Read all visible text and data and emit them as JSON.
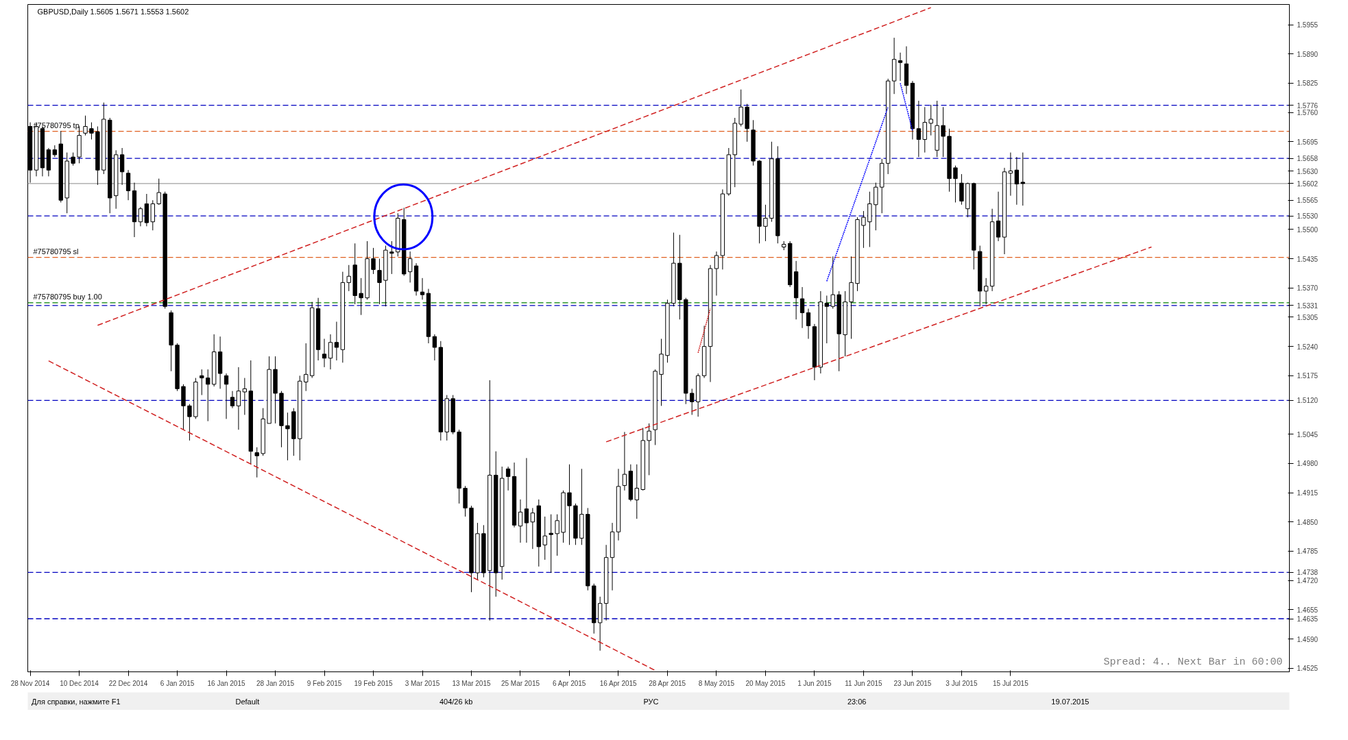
{
  "chart_data": {
    "type": "candlestick",
    "title": "GBPUSD,Daily 1.5605 1.5671 1.5553 1.5602",
    "categories": [
      "28 Nov 2014",
      null,
      null,
      null,
      null,
      null,
      null,
      null,
      "10 Dec 2014",
      null,
      null,
      null,
      null,
      null,
      null,
      null,
      "22 Dec 2014",
      null,
      null,
      null,
      null,
      null,
      null,
      null,
      "6 Jan 2015",
      null,
      null,
      null,
      null,
      null,
      null,
      null,
      "16 Jan 2015",
      null,
      null,
      null,
      null,
      null,
      null,
      null,
      "28 Jan 2015",
      null,
      null,
      null,
      null,
      null,
      null,
      null,
      "9 Feb 2015",
      null,
      null,
      null,
      null,
      null,
      null,
      null,
      "19 Feb 2015",
      null,
      null,
      null,
      null,
      null,
      null,
      null,
      "3 Mar 2015",
      null,
      null,
      null,
      null,
      null,
      null,
      null,
      "13 Mar 2015",
      null,
      null,
      null,
      null,
      null,
      null,
      null,
      "25 Mar 2015",
      null,
      null,
      null,
      null,
      null,
      null,
      null,
      "6 Apr 2015",
      null,
      null,
      null,
      null,
      null,
      null,
      null,
      "16 Apr 2015",
      null,
      null,
      null,
      null,
      null,
      null,
      null,
      "28 Apr 2015",
      null,
      null,
      null,
      null,
      null,
      null,
      null,
      "8 May 2015",
      null,
      null,
      null,
      null,
      null,
      null,
      null,
      "20 May 2015",
      null,
      null,
      null,
      null,
      null,
      null,
      null,
      "1 Jun 2015",
      null,
      null,
      null,
      null,
      null,
      null,
      null,
      "11 Jun 2015",
      null,
      null,
      null,
      null,
      null,
      null,
      null,
      "23 Jun 2015",
      null,
      null,
      null,
      null,
      null,
      null,
      null,
      "3 Jul 2015",
      null,
      null,
      null,
      null,
      null,
      null,
      null,
      "15 Jul 2015",
      null,
      null,
      null,
      null,
      null,
      null,
      null,
      null,
      null,
      null,
      null,
      null,
      null,
      null,
      null,
      null,
      null,
      null,
      null,
      null,
      null,
      null,
      null,
      null,
      null,
      null,
      null,
      null,
      null,
      null,
      null,
      null,
      null,
      null,
      null,
      null,
      null,
      null,
      null,
      null,
      null,
      null,
      null,
      null,
      null
    ],
    "ohlc": [
      [
        1.5729,
        1.5738,
        1.5604,
        1.5632
      ],
      [
        1.5632,
        1.5738,
        1.5618,
        1.5729
      ],
      [
        1.5724,
        1.5729,
        1.5618,
        1.5637
      ],
      [
        1.5677,
        1.5681,
        1.5618,
        1.5632
      ],
      [
        1.5677,
        1.5687,
        1.5661,
        1.5666
      ],
      [
        1.569,
        1.5719,
        1.556,
        1.5565
      ],
      [
        1.557,
        1.5671,
        1.5536,
        1.5652
      ],
      [
        1.5661,
        1.5671,
        1.5642,
        1.5647
      ],
      [
        1.5661,
        1.5729,
        1.5647,
        1.5709
      ],
      [
        1.5714,
        1.5753,
        1.5709,
        1.5729
      ],
      [
        1.5724,
        1.5738,
        1.57,
        1.5714
      ],
      [
        1.5717,
        1.5729,
        1.5599,
        1.5632
      ],
      [
        1.5632,
        1.5782,
        1.5623,
        1.5745
      ],
      [
        1.5743,
        1.5748,
        1.5536,
        1.557
      ],
      [
        1.5575,
        1.5676,
        1.5546,
        1.5666
      ],
      [
        1.5666,
        1.5681,
        1.5599,
        1.5628
      ],
      [
        1.5625,
        1.5632,
        1.5565,
        1.5586
      ],
      [
        1.5586,
        1.5604,
        1.5483,
        1.5517
      ],
      [
        1.5517,
        1.555,
        1.5507,
        1.5546
      ],
      [
        1.5557,
        1.5579,
        1.5507,
        1.5515
      ],
      [
        1.5517,
        1.5565,
        1.5498,
        1.5557
      ],
      [
        1.5557,
        1.5613,
        1.5555,
        1.5582
      ],
      [
        1.5579,
        1.5584,
        1.5324,
        1.5329
      ],
      [
        1.5315,
        1.532,
        1.5185,
        1.5243
      ],
      [
        1.5243,
        1.5247,
        1.5141,
        1.5146
      ],
      [
        1.5151,
        1.5156,
        1.5055,
        1.5108
      ],
      [
        1.5108,
        1.5112,
        1.5031,
        1.5084
      ],
      [
        1.5084,
        1.517,
        1.5079,
        1.5161
      ],
      [
        1.5175,
        1.5189,
        1.5132,
        1.517
      ],
      [
        1.517,
        1.5189,
        1.5074,
        1.5156
      ],
      [
        1.5156,
        1.5267,
        1.5151,
        1.5228
      ],
      [
        1.5228,
        1.5262,
        1.5146,
        1.518
      ],
      [
        1.5175,
        1.518,
        1.5079,
        1.5156
      ],
      [
        1.5127,
        1.5141,
        1.5103,
        1.5108
      ],
      [
        1.5108,
        1.5194,
        1.5055,
        1.5141
      ],
      [
        1.5139,
        1.517,
        1.5088,
        1.5146
      ],
      [
        1.5141,
        1.5209,
        1.4978,
        1.5007
      ],
      [
        1.5004,
        1.5016,
        1.4949,
        1.4997
      ],
      [
        1.5002,
        1.5103,
        1.4997,
        1.5079
      ],
      [
        1.5069,
        1.5218,
        1.5069,
        1.5189
      ],
      [
        1.5189,
        1.5218,
        1.5069,
        1.5136
      ],
      [
        1.5136,
        1.5141,
        1.5016,
        1.5064
      ],
      [
        1.5064,
        1.5093,
        1.4987,
        1.5057
      ],
      [
        1.5095,
        1.5103,
        1.4997,
        1.5035
      ],
      [
        1.5035,
        1.5175,
        1.4987,
        1.5163
      ],
      [
        1.5161,
        1.5247,
        1.5141,
        1.5178
      ],
      [
        1.5175,
        1.5339,
        1.517,
        1.5326
      ],
      [
        1.5324,
        1.5348,
        1.5209,
        1.5233
      ],
      [
        1.5223,
        1.5257,
        1.5194,
        1.5214
      ],
      [
        1.5214,
        1.5267,
        1.5189,
        1.5249
      ],
      [
        1.5249,
        1.5295,
        1.5209,
        1.5238
      ],
      [
        1.5233,
        1.5406,
        1.5204,
        1.5382
      ],
      [
        1.5382,
        1.5421,
        1.5363,
        1.5396
      ],
      [
        1.5421,
        1.5469,
        1.5334,
        1.5353
      ],
      [
        1.5358,
        1.5392,
        1.531,
        1.5348
      ],
      [
        1.5348,
        1.5474,
        1.5344,
        1.5435
      ],
      [
        1.5435,
        1.5459,
        1.5401,
        1.5411
      ],
      [
        1.5409,
        1.5435,
        1.5334,
        1.5382
      ],
      [
        1.5387,
        1.5464,
        1.5329,
        1.5454
      ],
      [
        1.545,
        1.5474,
        1.5401,
        1.5447
      ],
      [
        1.545,
        1.5536,
        1.544,
        1.5525
      ],
      [
        1.5522,
        1.5548,
        1.5397,
        1.5401
      ],
      [
        1.5406,
        1.5451,
        1.5382,
        1.5435
      ],
      [
        1.5419,
        1.5425,
        1.5353,
        1.5363
      ],
      [
        1.5361,
        1.5392,
        1.5344,
        1.5355
      ],
      [
        1.5358,
        1.5368,
        1.5247,
        1.5262
      ],
      [
        1.5262,
        1.5267,
        1.5209,
        1.5238
      ],
      [
        1.5238,
        1.5252,
        1.5031,
        1.505
      ],
      [
        1.505,
        1.5132,
        1.5031,
        1.5124
      ],
      [
        1.5124,
        1.5132,
        1.5045,
        1.505
      ],
      [
        1.505,
        1.5055,
        1.4891,
        1.4925
      ],
      [
        1.4925,
        1.493,
        1.4862,
        1.4881
      ],
      [
        1.4881,
        1.4886,
        1.4694,
        1.4737
      ],
      [
        1.4737,
        1.4848,
        1.4722,
        1.4824
      ],
      [
        1.4824,
        1.4843,
        1.4727,
        1.4737
      ],
      [
        1.4742,
        1.5165,
        1.4631,
        1.4954
      ],
      [
        1.4954,
        1.5007,
        1.4684,
        1.4737
      ],
      [
        1.4751,
        1.4973,
        1.4722,
        1.4947
      ],
      [
        1.4968,
        1.4973,
        1.492,
        1.4951
      ],
      [
        1.4951,
        1.4982,
        1.4838,
        1.4843
      ],
      [
        1.4841,
        1.49,
        1.4804,
        1.4872
      ],
      [
        1.4879,
        1.4992,
        1.4804,
        1.4848
      ],
      [
        1.485,
        1.4881,
        1.479,
        1.487
      ],
      [
        1.4886,
        1.49,
        1.4751,
        1.4795
      ],
      [
        1.4799,
        1.4862,
        1.4766,
        1.4819
      ],
      [
        1.4825,
        1.4867,
        1.4737,
        1.4822
      ],
      [
        1.4824,
        1.4867,
        1.4775,
        1.4853
      ],
      [
        1.4827,
        1.492,
        1.4804,
        1.4915
      ],
      [
        1.4915,
        1.4978,
        1.4799,
        1.4886
      ],
      [
        1.4886,
        1.4891,
        1.4799,
        1.4814
      ],
      [
        1.4814,
        1.4968,
        1.4799,
        1.4867
      ],
      [
        1.4867,
        1.4881,
        1.4698,
        1.4708
      ],
      [
        1.4708,
        1.4713,
        1.4602,
        1.4626
      ],
      [
        1.4626,
        1.4684,
        1.4564,
        1.4669
      ],
      [
        1.4669,
        1.4799,
        1.4631,
        1.4771
      ],
      [
        1.4771,
        1.4848,
        1.4698,
        1.4828
      ],
      [
        1.4828,
        1.4968,
        1.4809,
        1.4929
      ],
      [
        1.4931,
        1.505,
        1.492,
        1.4956
      ],
      [
        1.4963,
        1.4978,
        1.4896,
        1.49
      ],
      [
        1.4899,
        1.4978,
        1.4857,
        1.4925
      ],
      [
        1.4922,
        1.5059,
        1.492,
        1.5031
      ],
      [
        1.5031,
        1.5069,
        1.4954,
        1.5052
      ],
      [
        1.5055,
        1.5189,
        1.5021,
        1.5185
      ],
      [
        1.5178,
        1.5257,
        1.5108,
        1.5223
      ],
      [
        1.522,
        1.5344,
        1.5204,
        1.5336
      ],
      [
        1.5336,
        1.5493,
        1.5329,
        1.5425
      ],
      [
        1.5425,
        1.5488,
        1.53,
        1.5344
      ],
      [
        1.5344,
        1.5348,
        1.5112,
        1.5136
      ],
      [
        1.5136,
        1.5146,
        1.5088,
        1.5117
      ],
      [
        1.5117,
        1.518,
        1.5084,
        1.5175
      ],
      [
        1.5175,
        1.5286,
        1.517,
        1.524
      ],
      [
        1.524,
        1.5421,
        1.5161,
        1.5413
      ],
      [
        1.5413,
        1.5451,
        1.5353,
        1.5442
      ],
      [
        1.5442,
        1.5589,
        1.5411,
        1.5579
      ],
      [
        1.5579,
        1.5681,
        1.5575,
        1.5666
      ],
      [
        1.5666,
        1.5748,
        1.5594,
        1.5736
      ],
      [
        1.5734,
        1.5811,
        1.5729,
        1.5772
      ],
      [
        1.5772,
        1.5779,
        1.5695,
        1.5724
      ],
      [
        1.5721,
        1.5743,
        1.5642,
        1.5652
      ],
      [
        1.5652,
        1.5654,
        1.5469,
        1.5507
      ],
      [
        1.5507,
        1.5555,
        1.5474,
        1.5525
      ],
      [
        1.5525,
        1.5695,
        1.5517,
        1.5657
      ],
      [
        1.5657,
        1.5685,
        1.5469,
        1.5486
      ],
      [
        1.5461,
        1.5474,
        1.5454,
        1.5467
      ],
      [
        1.5469,
        1.5474,
        1.5372,
        1.5377
      ],
      [
        1.5406,
        1.543,
        1.53,
        1.5348
      ],
      [
        1.5346,
        1.5372,
        1.5281,
        1.5315
      ],
      [
        1.5315,
        1.5324,
        1.5257,
        1.5286
      ],
      [
        1.5284,
        1.529,
        1.5165,
        1.5194
      ],
      [
        1.5194,
        1.5363,
        1.518,
        1.5339
      ],
      [
        1.5336,
        1.5353,
        1.5247,
        1.5329
      ],
      [
        1.5329,
        1.544,
        1.5324,
        1.5355
      ],
      [
        1.5355,
        1.5363,
        1.5185,
        1.5268
      ],
      [
        1.5266,
        1.5363,
        1.5218,
        1.5339
      ],
      [
        1.5339,
        1.544,
        1.5257,
        1.5382
      ],
      [
        1.538,
        1.5527,
        1.5363,
        1.5522
      ],
      [
        1.5509,
        1.5541,
        1.5459,
        1.5527
      ],
      [
        1.5517,
        1.5584,
        1.5461,
        1.5557
      ],
      [
        1.5555,
        1.5604,
        1.5498,
        1.5594
      ],
      [
        1.5594,
        1.5657,
        1.5536,
        1.5647
      ],
      [
        1.5647,
        1.5835,
        1.5623,
        1.583
      ],
      [
        1.583,
        1.5926,
        1.5801,
        1.5878
      ],
      [
        1.5875,
        1.5893,
        1.583,
        1.5871
      ],
      [
        1.5868,
        1.5907,
        1.5801,
        1.582
      ],
      [
        1.5825,
        1.583,
        1.57,
        1.5724
      ],
      [
        1.5724,
        1.5786,
        1.5661,
        1.57
      ],
      [
        1.57,
        1.5772,
        1.5671,
        1.5738
      ],
      [
        1.5736,
        1.5777,
        1.5709,
        1.5745
      ],
      [
        1.5676,
        1.5786,
        1.5661,
        1.5731
      ],
      [
        1.5731,
        1.5772,
        1.5661,
        1.5707
      ],
      [
        1.5707,
        1.5724,
        1.5584,
        1.5613
      ],
      [
        1.5637,
        1.5642,
        1.556,
        1.5613
      ],
      [
        1.5603,
        1.5623,
        1.5555,
        1.5563
      ],
      [
        1.5546,
        1.5604,
        1.5527,
        1.5602
      ],
      [
        1.5602,
        1.5604,
        1.5411,
        1.5454
      ],
      [
        1.5451,
        1.5464,
        1.5329,
        1.5363
      ],
      [
        1.5363,
        1.5392,
        1.5334,
        1.5374
      ],
      [
        1.5374,
        1.5546,
        1.5363,
        1.5517
      ],
      [
        1.5519,
        1.5584,
        1.5474,
        1.5483
      ],
      [
        1.5483,
        1.5637,
        1.5445,
        1.5628
      ],
      [
        1.5625,
        1.5671,
        1.5575,
        1.563
      ],
      [
        1.5632,
        1.5661,
        1.5555,
        1.5601
      ],
      [
        1.5605,
        1.5671,
        1.5553,
        1.5602
      ],
      null,
      null,
      null,
      null,
      null,
      null,
      null,
      null,
      null,
      null,
      null,
      null,
      null,
      null,
      null,
      null,
      null,
      null,
      null,
      null,
      null,
      null,
      null,
      null,
      null,
      null,
      null,
      null,
      null,
      null,
      null,
      null,
      null,
      null,
      null,
      null,
      null,
      null,
      null,
      null,
      null,
      null,
      null
    ],
    "series": [
      {
        "type": "line",
        "color": "#d02020",
        "line_style": "dashed",
        "values": [
          null,
          null,
          null,
          null,
          null,
          null,
          null,
          null,
          null,
          null,
          null,
          1.5287,
          null,
          null,
          null,
          null,
          null,
          null,
          null,
          null,
          null,
          null,
          null,
          null,
          null,
          null,
          null,
          null,
          null,
          null,
          null,
          null,
          null,
          null,
          null,
          null,
          null,
          null,
          null,
          null,
          null,
          null,
          null,
          null,
          null,
          null,
          null,
          null,
          null,
          null,
          null,
          null,
          null,
          null,
          null,
          null,
          null,
          null,
          null,
          null,
          null,
          null,
          null,
          null,
          null,
          null,
          null,
          null,
          null,
          null,
          null,
          null,
          null,
          null,
          null,
          null,
          null,
          null,
          null,
          null,
          null,
          null,
          null,
          null,
          null,
          null,
          null,
          null,
          null,
          null,
          null,
          null,
          null,
          null,
          null,
          null,
          null,
          null,
          null,
          null,
          null,
          null,
          null,
          null,
          null,
          null,
          null,
          null,
          null,
          null,
          null,
          null,
          null,
          null,
          null,
          null,
          null,
          null,
          null,
          null,
          null,
          null,
          null,
          null,
          null,
          null,
          null,
          null,
          null,
          null,
          null,
          null,
          null,
          null,
          null,
          null,
          null,
          null,
          null,
          null,
          null,
          null,
          null,
          null,
          null,
          null,
          null,
          1.5993,
          null,
          null,
          null,
          null,
          null,
          null,
          null,
          null,
          null,
          null,
          null,
          null,
          null,
          null,
          null,
          null,
          null,
          null,
          null,
          null,
          null,
          null,
          null,
          null,
          null,
          null,
          null,
          null,
          null,
          null,
          null,
          null,
          null,
          null,
          null,
          null,
          null,
          null,
          null,
          null,
          null,
          null,
          null,
          null,
          null,
          null,
          null,
          null,
          null,
          null,
          null,
          null,
          null,
          null,
          null,
          null,
          null,
          null
        ]
      },
      {
        "type": "line",
        "color": "#d02020",
        "line_style": "dashed",
        "values": [
          null,
          null,
          null,
          1.5208,
          null,
          null,
          null,
          null,
          null,
          null,
          null,
          null,
          null,
          null,
          null,
          null,
          null,
          null,
          null,
          null,
          null,
          null,
          null,
          null,
          null,
          null,
          null,
          null,
          null,
          null,
          null,
          null,
          null,
          null,
          null,
          null,
          null,
          null,
          null,
          null,
          null,
          null,
          null,
          null,
          null,
          null,
          null,
          null,
          null,
          null,
          null,
          null,
          null,
          null,
          null,
          null,
          null,
          null,
          null,
          null,
          null,
          null,
          null,
          null,
          null,
          null,
          null,
          null,
          null,
          null,
          null,
          null,
          null,
          null,
          null,
          null,
          null,
          null,
          null,
          null,
          null,
          null,
          null,
          null,
          null,
          null,
          null,
          null,
          null,
          null,
          null,
          null,
          null,
          null,
          null,
          null,
          null,
          null,
          null,
          null,
          null,
          null,
          1.452,
          null,
          null,
          null,
          null,
          null,
          null,
          null,
          null,
          null,
          null,
          null,
          null,
          null,
          null,
          null,
          null,
          null,
          null,
          null,
          null,
          null,
          null,
          null,
          null,
          null,
          null,
          null,
          null,
          null,
          null,
          null,
          null,
          null,
          null,
          null,
          null,
          null,
          null,
          null,
          null,
          null,
          null,
          null,
          null,
          null,
          null,
          null,
          null,
          null,
          null,
          null,
          null,
          null,
          null,
          null,
          null,
          null,
          null,
          null,
          null,
          null,
          null,
          null,
          null,
          null,
          null,
          null,
          null,
          null,
          null,
          null,
          null,
          null,
          null,
          null,
          null,
          null,
          null,
          null,
          null,
          null,
          null,
          null,
          null,
          null,
          null,
          null,
          null,
          null,
          null,
          null,
          null,
          null,
          null,
          null,
          null,
          null,
          null,
          null,
          null,
          null,
          null,
          null
        ]
      },
      {
        "type": "line",
        "color": "#d02020",
        "line_style": "dashed",
        "values": [
          null,
          null,
          null,
          null,
          null,
          null,
          null,
          null,
          null,
          null,
          null,
          null,
          null,
          null,
          null,
          null,
          null,
          null,
          null,
          null,
          null,
          null,
          null,
          null,
          null,
          null,
          null,
          null,
          null,
          null,
          null,
          null,
          null,
          null,
          null,
          null,
          null,
          null,
          null,
          null,
          null,
          null,
          null,
          null,
          null,
          null,
          null,
          null,
          null,
          null,
          null,
          null,
          null,
          null,
          null,
          null,
          null,
          null,
          null,
          null,
          null,
          null,
          null,
          null,
          null,
          null,
          null,
          null,
          null,
          null,
          null,
          null,
          null,
          null,
          null,
          null,
          null,
          null,
          null,
          null,
          null,
          null,
          null,
          null,
          null,
          null,
          null,
          null,
          null,
          null,
          null,
          null,
          null,
          null,
          1.5028,
          null,
          null,
          null,
          null,
          null,
          null,
          null,
          null,
          null,
          null,
          null,
          null,
          null,
          null,
          null,
          null,
          null,
          null,
          null,
          null,
          null,
          null,
          null,
          null,
          null,
          null,
          null,
          null,
          null,
          null,
          null,
          null,
          null,
          null,
          null,
          null,
          null,
          null,
          null,
          null,
          null,
          null,
          null,
          null,
          null,
          null,
          null,
          null,
          null,
          null,
          null,
          null,
          null,
          null,
          null,
          null,
          null,
          null,
          null,
          null,
          null,
          null,
          null,
          null,
          null,
          null,
          null,
          null,
          null,
          null,
          null,
          null,
          null,
          null,
          null,
          null,
          null,
          null,
          null,
          null,
          null,
          null,
          null,
          null,
          null,
          null,
          null,
          null,
          1.5461,
          null,
          null,
          null,
          null,
          null,
          null,
          null,
          null,
          null,
          null,
          null,
          null,
          null,
          null,
          null,
          null,
          null,
          null,
          null,
          null,
          null,
          null
        ]
      },
      {
        "type": "line",
        "color": "#0000ff",
        "line_style": "dotted",
        "values": [
          null,
          null,
          null,
          null,
          null,
          null,
          null,
          null,
          null,
          null,
          null,
          null,
          null,
          null,
          null,
          null,
          null,
          null,
          null,
          null,
          null,
          null,
          null,
          null,
          null,
          null,
          null,
          null,
          null,
          null,
          null,
          null,
          null,
          null,
          null,
          null,
          null,
          null,
          null,
          null,
          null,
          null,
          null,
          null,
          null,
          null,
          null,
          null,
          null,
          null,
          null,
          null,
          null,
          null,
          null,
          null,
          null,
          null,
          null,
          null,
          null,
          null,
          null,
          null,
          null,
          null,
          null,
          null,
          null,
          null,
          null,
          null,
          null,
          null,
          null,
          null,
          null,
          null,
          null,
          null,
          null,
          null,
          null,
          null,
          null,
          null,
          null,
          null,
          null,
          null,
          null,
          null,
          null,
          null,
          null,
          null,
          null,
          null,
          null,
          null,
          null,
          null,
          null,
          null,
          null,
          null,
          null,
          null,
          null,
          null,
          null,
          null,
          null,
          null,
          null,
          null,
          null,
          null,
          null,
          null,
          null,
          null,
          null,
          null,
          null,
          null,
          null,
          null,
          null,
          null,
          1.5385,
          null,
          null,
          null,
          null,
          null,
          null,
          null,
          null,
          null,
          1.5772,
          null,
          null,
          null,
          null,
          null,
          null,
          null,
          null,
          null,
          null,
          null,
          null,
          null,
          null,
          null,
          null,
          null,
          null,
          null,
          null,
          null,
          null,
          null,
          null,
          null,
          null,
          null,
          null,
          null,
          null,
          null,
          null,
          null,
          null,
          null,
          null,
          null,
          null,
          null,
          null,
          null,
          null,
          null,
          null,
          null,
          null,
          null,
          null,
          null,
          null,
          null,
          null,
          null,
          null,
          null,
          null,
          null,
          null,
          null,
          null,
          null,
          null,
          null,
          null,
          null
        ]
      },
      {
        "type": "line",
        "color": "#0000ff",
        "line_style": "dotted",
        "values": [
          null,
          null,
          null,
          null,
          null,
          null,
          null,
          null,
          null,
          null,
          null,
          null,
          null,
          null,
          null,
          null,
          null,
          null,
          null,
          null,
          null,
          null,
          null,
          null,
          null,
          null,
          null,
          null,
          null,
          null,
          null,
          null,
          null,
          null,
          null,
          null,
          null,
          null,
          null,
          null,
          null,
          null,
          null,
          null,
          null,
          null,
          null,
          null,
          null,
          null,
          null,
          null,
          null,
          null,
          null,
          null,
          null,
          null,
          null,
          null,
          null,
          null,
          null,
          null,
          null,
          null,
          null,
          null,
          null,
          null,
          null,
          null,
          null,
          null,
          null,
          null,
          null,
          null,
          null,
          null,
          null,
          null,
          null,
          null,
          null,
          null,
          null,
          null,
          null,
          null,
          null,
          null,
          null,
          null,
          null,
          null,
          null,
          null,
          null,
          null,
          null,
          null,
          null,
          null,
          null,
          null,
          null,
          null,
          null,
          null,
          null,
          null,
          null,
          null,
          null,
          null,
          null,
          null,
          null,
          null,
          null,
          null,
          null,
          null,
          null,
          null,
          null,
          null,
          null,
          null,
          null,
          null,
          null,
          null,
          null,
          null,
          null,
          null,
          null,
          null,
          null,
          null,
          1.5825,
          null,
          1.5719,
          null,
          null,
          null,
          null,
          null,
          null,
          null,
          null,
          null,
          null,
          null,
          null,
          null,
          null,
          null,
          null,
          null,
          null,
          null,
          null,
          null,
          null,
          null,
          null,
          null,
          null,
          null,
          null,
          null,
          null,
          null,
          null,
          null,
          null,
          null,
          null,
          null,
          null,
          null,
          null,
          null,
          null,
          null,
          null,
          null,
          null,
          null,
          null,
          null,
          null,
          null,
          null,
          null,
          null,
          null,
          null,
          null,
          null,
          null,
          null,
          null
        ]
      },
      {
        "type": "line",
        "color": "#d02020",
        "line_style": "dotted",
        "values": [
          null,
          null,
          null,
          null,
          null,
          null,
          null,
          null,
          null,
          null,
          null,
          null,
          null,
          null,
          null,
          null,
          null,
          null,
          null,
          null,
          null,
          null,
          null,
          null,
          null,
          null,
          null,
          null,
          null,
          null,
          null,
          null,
          null,
          null,
          null,
          null,
          null,
          null,
          null,
          null,
          null,
          null,
          null,
          null,
          null,
          null,
          null,
          null,
          null,
          null,
          null,
          null,
          null,
          null,
          null,
          null,
          null,
          null,
          null,
          null,
          null,
          null,
          null,
          null,
          null,
          null,
          null,
          null,
          null,
          null,
          null,
          null,
          null,
          null,
          null,
          null,
          null,
          null,
          null,
          null,
          null,
          null,
          null,
          null,
          null,
          null,
          null,
          null,
          null,
          null,
          null,
          null,
          null,
          null,
          null,
          null,
          null,
          null,
          null,
          null,
          null,
          null,
          null,
          null,
          null,
          null,
          null,
          null,
          null,
          1.5226,
          null,
          1.5324,
          null,
          null,
          null,
          null,
          null,
          null,
          null,
          null,
          null,
          null,
          null,
          null,
          null,
          null,
          null,
          null,
          null,
          null,
          null,
          null,
          null,
          null,
          null,
          null,
          null,
          null,
          null,
          null,
          null,
          null,
          null,
          null,
          null,
          null,
          null,
          null,
          null,
          null,
          null,
          null,
          null,
          null,
          null,
          null,
          null,
          null,
          null,
          null,
          null,
          null,
          null,
          null,
          null,
          null,
          null,
          null,
          null,
          null,
          null,
          null,
          null,
          null,
          null,
          null,
          null,
          null,
          null,
          null,
          null,
          null,
          null,
          null,
          null,
          null,
          null,
          null,
          null,
          null,
          null,
          null,
          null,
          null,
          null,
          null,
          null,
          null,
          null,
          null,
          null,
          null,
          null,
          null,
          null,
          null
        ]
      }
    ],
    "ref_lines": [
      {
        "axis": "y",
        "value": 1.5776,
        "color": "#0000c0",
        "line_style": "dashed"
      },
      {
        "axis": "y",
        "value": 1.5718,
        "label": "#75780795 tp",
        "color": "#e06020",
        "line_style": "dashed"
      },
      {
        "axis": "y",
        "value": 1.5658,
        "color": "#0000c0",
        "line_style": "dashed"
      },
      {
        "axis": "y",
        "value": 1.5602,
        "color": "#a0a0a0",
        "line_style": "solid"
      },
      {
        "axis": "y",
        "value": 1.553,
        "color": "#0000c0",
        "line_style": "dashed"
      },
      {
        "axis": "y",
        "value": 1.5438,
        "label": "#75780795 sl",
        "color": "#e06020",
        "line_style": "dashed"
      },
      {
        "axis": "y",
        "value": 1.5337,
        "label": "#75780795 buy 1.00",
        "color": "#008000",
        "line_style": "dashed"
      },
      {
        "axis": "y",
        "value": 1.5331,
        "color": "#0000c0",
        "line_style": "dashed"
      },
      {
        "axis": "y",
        "value": 1.512,
        "color": "#0000c0",
        "line_style": "dashed"
      },
      {
        "axis": "y",
        "value": 1.4738,
        "color": "#0000c0",
        "line_style": "dashed"
      },
      {
        "axis": "y",
        "value": 1.4635,
        "color": "#0000c0",
        "line_style": "dashed"
      }
    ],
    "annotations": [
      "Spread: 4.. Next Bar in 60:00",
      "Для справки, нажмите F1",
      "Default",
      "404/26 kb",
      "РУС",
      "23:06",
      "19.07.2015"
    ],
    "ylim": [
      1.4517,
      1.6
    ],
    "yticks": [
      1.5955,
      {
        "value": 1.589,
        "label": "1.5890"
      },
      1.5825,
      1.5776,
      {
        "value": 1.576,
        "label": "1.5760"
      },
      1.5695,
      1.5658,
      {
        "value": 1.563,
        "label": "1.5630"
      },
      1.5602,
      1.5565,
      {
        "value": 1.553,
        "label": "1.5530"
      },
      {
        "value": 1.55,
        "label": "1.5500"
      },
      1.5435,
      {
        "value": 1.537,
        "label": "1.5370"
      },
      1.5331,
      1.5305,
      {
        "value": 1.524,
        "label": "1.5240"
      },
      1.5175,
      {
        "value": 1.512,
        "label": "1.5120"
      },
      1.5045,
      {
        "value": 1.498,
        "label": "1.4980"
      },
      1.4915,
      {
        "value": 1.485,
        "label": "1.4850"
      },
      1.4785,
      1.4738,
      {
        "value": 1.472,
        "label": "1.4720"
      },
      1.4655,
      1.4635,
      {
        "value": 1.459,
        "label": "1.4590"
      },
      1.4525
    ],
    "grid": false
  }
}
